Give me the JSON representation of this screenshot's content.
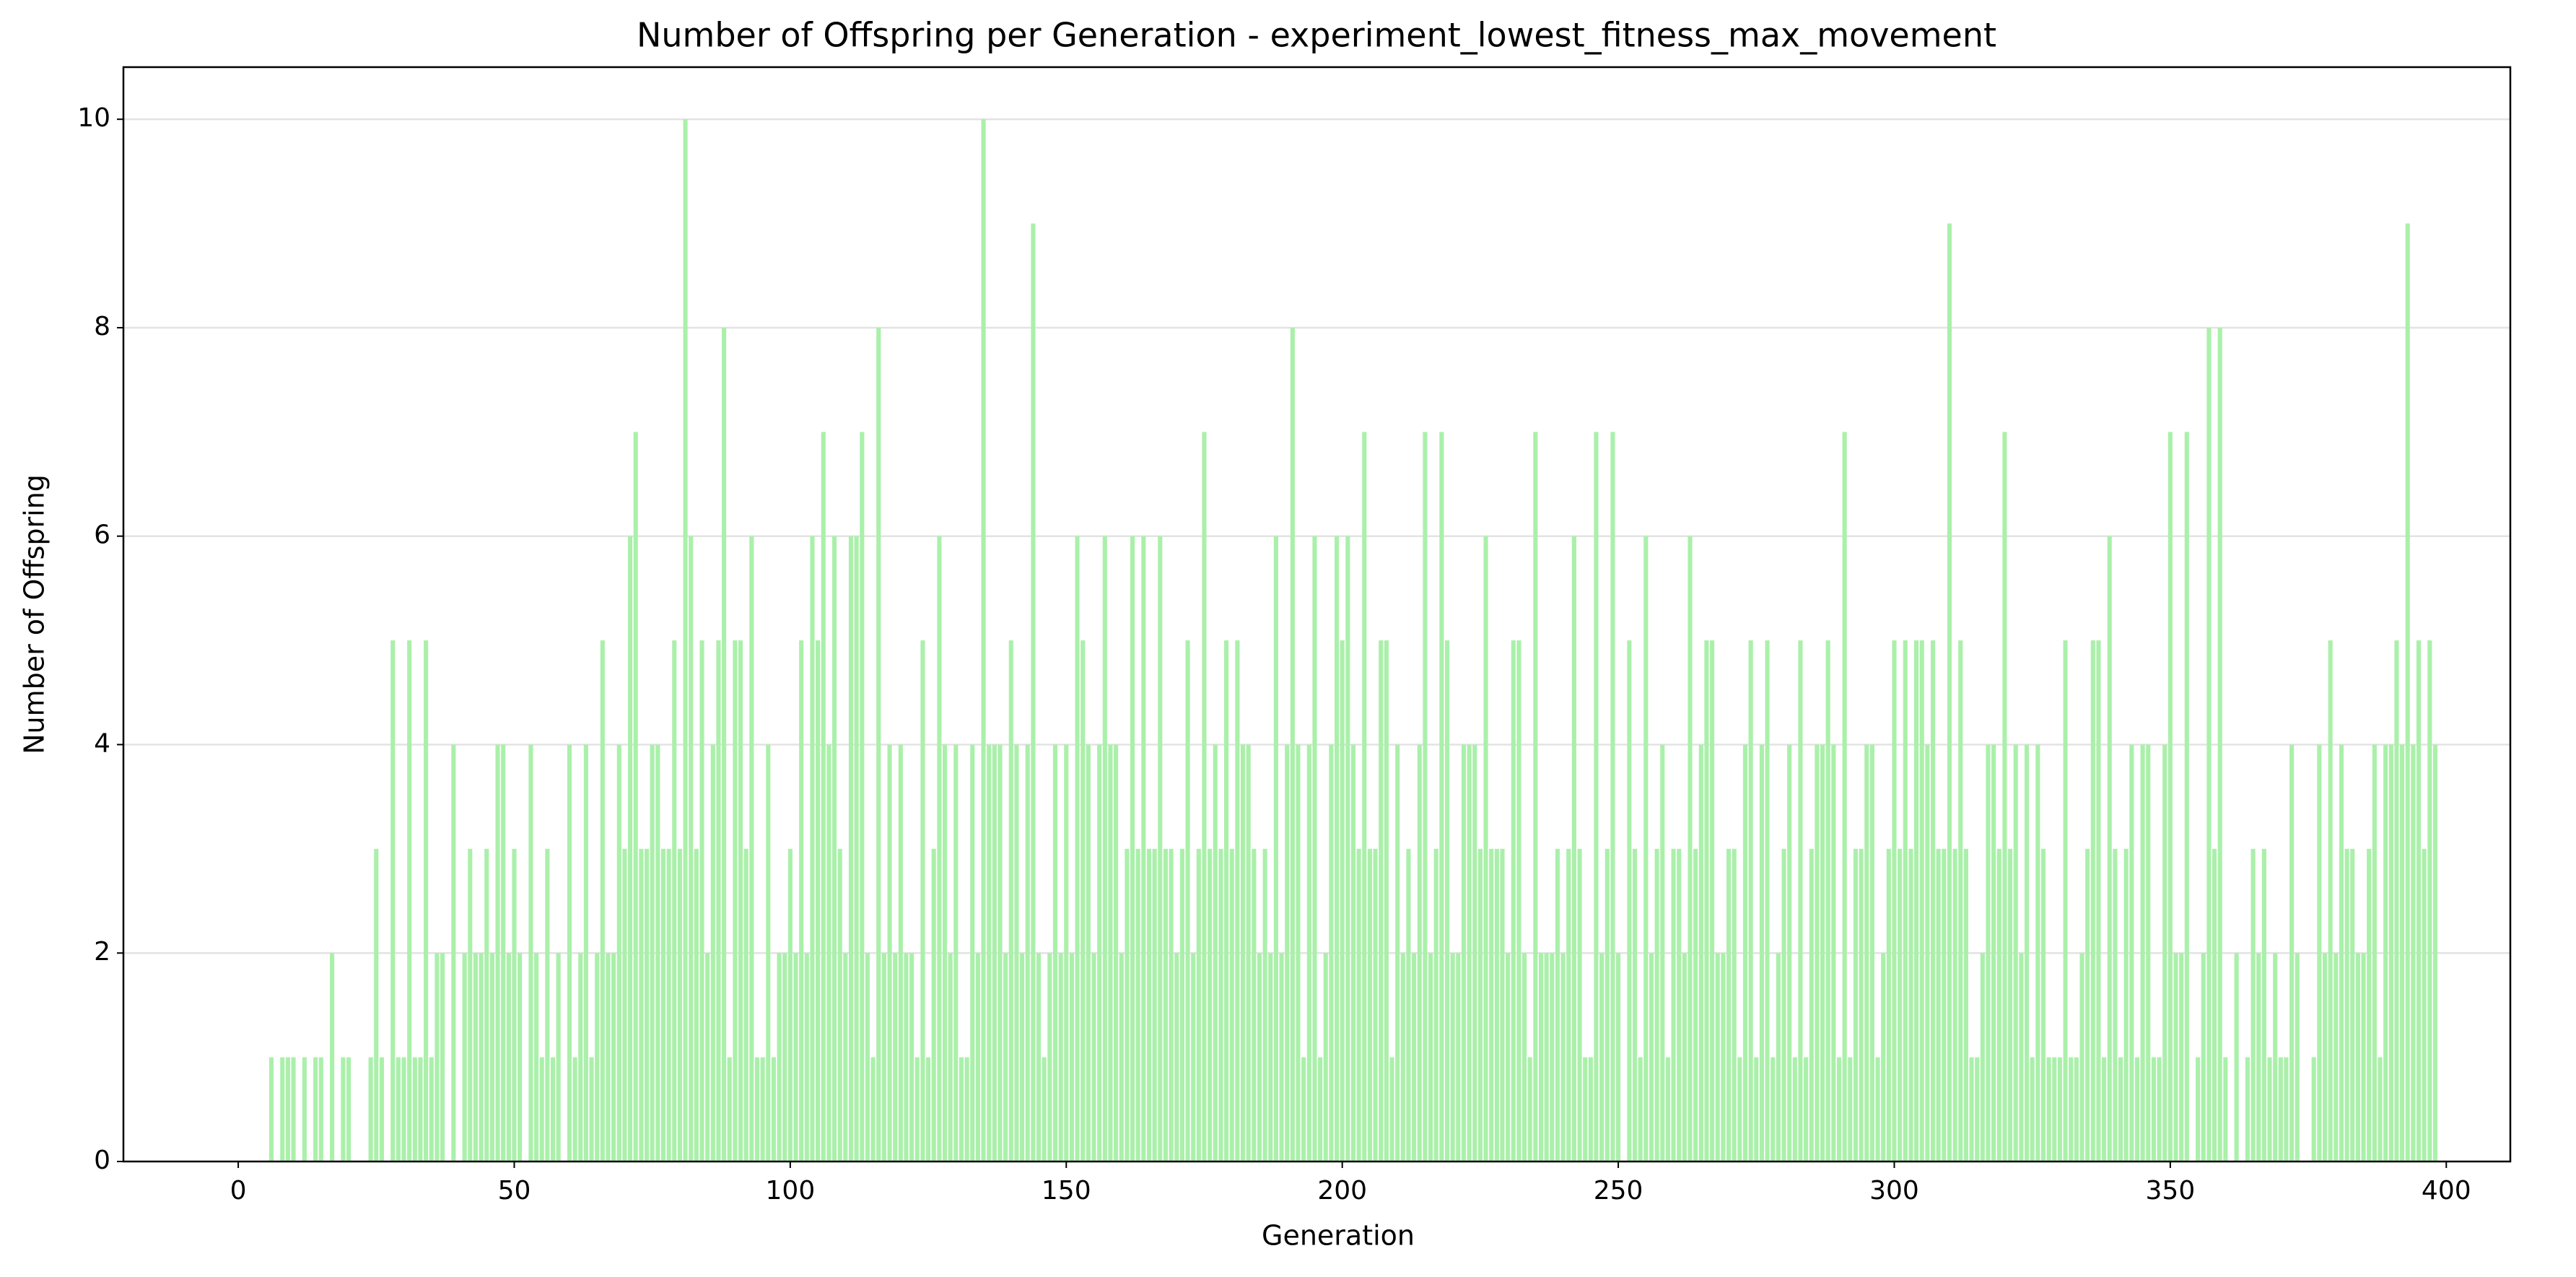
{
  "chart_data": {
    "type": "bar",
    "title": "Number of Offspring per Generation - experiment_lowest_fitness_max_movement",
    "x_label": "Generation",
    "y_label": "Number of Offspring",
    "color": "#aaf0aa",
    "grid": true,
    "x": [
      0,
      1,
      2,
      3,
      4,
      5,
      6,
      7,
      8,
      9,
      10,
      11,
      12,
      13,
      14,
      15,
      16,
      17,
      18,
      19,
      20,
      21,
      22,
      23,
      24,
      25,
      26,
      27,
      28,
      29,
      30,
      31,
      32,
      33,
      34,
      35,
      36,
      37,
      38,
      39,
      40,
      41,
      42,
      43,
      44,
      45,
      46,
      47,
      48,
      49,
      50,
      51,
      52,
      53,
      54,
      55,
      56,
      57,
      58,
      59,
      60,
      61,
      62,
      63,
      64,
      65,
      66,
      67,
      68,
      69,
      70,
      71,
      72,
      73,
      74,
      75,
      76,
      77,
      78,
      79,
      80,
      81,
      82,
      83,
      84,
      85,
      86,
      87,
      88,
      89,
      90,
      91,
      92,
      93,
      94,
      95,
      96,
      97,
      98,
      99,
      100,
      101,
      102,
      103,
      104,
      105,
      106,
      107,
      108,
      109,
      110,
      111,
      112,
      113,
      114,
      115,
      116,
      117,
      118,
      119,
      120,
      121,
      122,
      123,
      124,
      125,
      126,
      127,
      128,
      129,
      130,
      131,
      132,
      133,
      134,
      135,
      136,
      137,
      138,
      139,
      140,
      141,
      142,
      143,
      144,
      145,
      146,
      147,
      148,
      149,
      150,
      151,
      152,
      153,
      154,
      155,
      156,
      157,
      158,
      159,
      160,
      161,
      162,
      163,
      164,
      165,
      166,
      167,
      168,
      169,
      170,
      171,
      172,
      173,
      174,
      175,
      176,
      177,
      178,
      179,
      180,
      181,
      182,
      183,
      184,
      185,
      186,
      187,
      188,
      189,
      190,
      191,
      192,
      193,
      194,
      195,
      196,
      197,
      198,
      199,
      200,
      201,
      202,
      203,
      204,
      205,
      206,
      207,
      208,
      209,
      210,
      211,
      212,
      213,
      214,
      215,
      216,
      217,
      218,
      219,
      220,
      221,
      222,
      223,
      224,
      225,
      226,
      227,
      228,
      229,
      230,
      231,
      232,
      233,
      234,
      235,
      236,
      237,
      238,
      239,
      240,
      241,
      242,
      243,
      244,
      245,
      246,
      247,
      248,
      249,
      250,
      251,
      252,
      253,
      254,
      255,
      256,
      257,
      258,
      259,
      260,
      261,
      262,
      263,
      264,
      265,
      266,
      267,
      268,
      269,
      270,
      271,
      272,
      273,
      274,
      275,
      276,
      277,
      278,
      279,
      280,
      281,
      282,
      283,
      284,
      285,
      286,
      287,
      288,
      289,
      290,
      291,
      292,
      293,
      294,
      295,
      296,
      297,
      298,
      299,
      300,
      301,
      302,
      303,
      304,
      305,
      306,
      307,
      308,
      309,
      310,
      311,
      312,
      313,
      314,
      315,
      316,
      317,
      318,
      319,
      320,
      321,
      322,
      323,
      324,
      325,
      326,
      327,
      328,
      329,
      330,
      331,
      332,
      333,
      334,
      335,
      336,
      337,
      338,
      339,
      340,
      341,
      342,
      343,
      344,
      345,
      346,
      347,
      348,
      349,
      350,
      351,
      352,
      353,
      354,
      355,
      356,
      357,
      358,
      359,
      360,
      361,
      362,
      363,
      364,
      365,
      366,
      367,
      368,
      369,
      370,
      371,
      372,
      373,
      374,
      375,
      376,
      377,
      378,
      379,
      380,
      381,
      382,
      383,
      384,
      385,
      386,
      387,
      388,
      389,
      390,
      391,
      392,
      393,
      394,
      395,
      396,
      397,
      398
    ],
    "values": [
      0,
      0,
      0,
      0,
      0,
      0,
      1,
      0,
      1,
      1,
      1,
      0,
      1,
      0,
      1,
      1,
      0,
      2,
      0,
      1,
      1,
      0,
      0,
      0,
      1,
      3,
      1,
      0,
      5,
      1,
      1,
      5,
      1,
      1,
      5,
      1,
      2,
      2,
      0,
      4,
      0,
      2,
      3,
      2,
      2,
      3,
      2,
      4,
      4,
      2,
      3,
      2,
      0,
      4,
      2,
      1,
      3,
      1,
      2,
      0,
      4,
      1,
      2,
      4,
      1,
      2,
      5,
      2,
      2,
      4,
      3,
      6,
      7,
      3,
      3,
      4,
      4,
      3,
      3,
      5,
      3,
      10,
      6,
      3,
      5,
      2,
      4,
      5,
      8,
      1,
      5,
      5,
      3,
      6,
      1,
      1,
      4,
      1,
      2,
      2,
      3,
      2,
      5,
      2,
      6,
      5,
      7,
      4,
      6,
      3,
      2,
      6,
      6,
      7,
      2,
      1,
      8,
      2,
      4,
      2,
      4,
      2,
      2,
      1,
      5,
      1,
      3,
      6,
      4,
      2,
      4,
      1,
      1,
      4,
      2,
      10,
      4,
      4,
      4,
      2,
      5,
      4,
      2,
      4,
      9,
      2,
      1,
      2,
      4,
      2,
      4,
      2,
      6,
      5,
      4,
      2,
      4,
      6,
      4,
      4,
      2,
      3,
      6,
      3,
      6,
      3,
      3,
      6,
      3,
      3,
      2,
      3,
      5,
      2,
      3,
      7,
      3,
      4,
      3,
      5,
      3,
      5,
      4,
      4,
      3,
      2,
      3,
      2,
      6,
      2,
      4,
      8,
      4,
      1,
      4,
      6,
      1,
      2,
      4,
      6,
      5,
      6,
      4,
      3,
      7,
      3,
      3,
      5,
      5,
      1,
      4,
      2,
      3,
      2,
      4,
      7,
      2,
      3,
      7,
      5,
      2,
      2,
      4,
      4,
      4,
      3,
      6,
      3,
      3,
      3,
      2,
      5,
      5,
      2,
      1,
      7,
      2,
      2,
      2,
      3,
      2,
      3,
      6,
      3,
      1,
      1,
      7,
      2,
      3,
      7,
      2,
      0,
      5,
      3,
      1,
      6,
      2,
      3,
      4,
      1,
      3,
      3,
      2,
      6,
      3,
      4,
      5,
      5,
      2,
      2,
      3,
      3,
      1,
      4,
      5,
      1,
      4,
      5,
      1,
      2,
      3,
      4,
      1,
      5,
      1,
      3,
      4,
      4,
      5,
      4,
      1,
      7,
      1,
      3,
      3,
      4,
      4,
      1,
      2,
      3,
      5,
      3,
      5,
      3,
      5,
      5,
      4,
      5,
      3,
      3,
      9,
      3,
      5,
      3,
      1,
      1,
      2,
      4,
      4,
      3,
      7,
      3,
      4,
      2,
      4,
      1,
      4,
      3,
      1,
      1,
      1,
      5,
      1,
      1,
      2,
      3,
      5,
      5,
      1,
      6,
      3,
      1,
      3,
      4,
      1,
      4,
      4,
      1,
      1,
      4,
      7,
      2,
      2,
      7,
      0,
      1,
      2,
      8,
      3,
      8,
      1,
      0,
      2,
      0,
      1,
      3,
      2,
      3,
      1,
      2,
      1,
      1,
      4,
      2,
      0,
      0,
      1,
      4,
      2,
      5,
      2,
      4,
      3,
      3,
      2,
      2,
      3,
      4,
      1,
      4,
      4,
      5,
      4,
      9,
      4,
      5,
      3,
      5,
      4
    ],
    "xlim": [
      -20.8,
      411.6
    ],
    "xticks": [
      0,
      50,
      100,
      150,
      200,
      250,
      300,
      350,
      400
    ],
    "ylim": [
      0,
      10.5
    ],
    "yticks": [
      0,
      2,
      4,
      6,
      8,
      10
    ]
  }
}
